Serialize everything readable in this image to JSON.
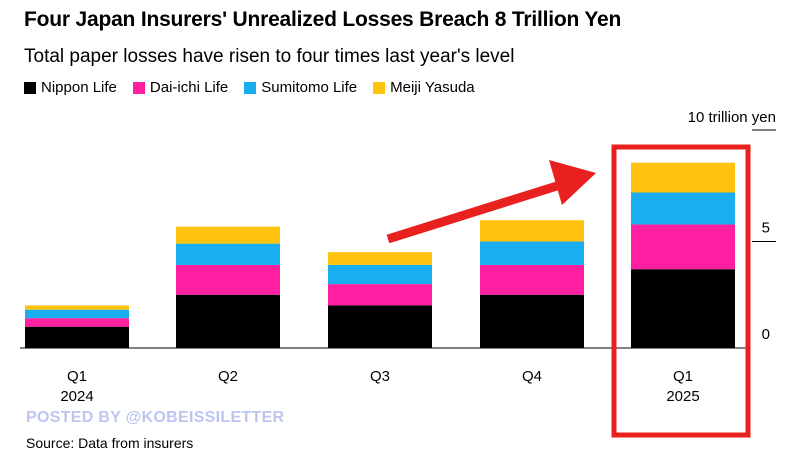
{
  "title": "Four Japan Insurers' Unrealized Losses Breach 8 Trillion Yen",
  "subtitle": "Total paper losses have risen to four times last year's level",
  "source": "Source: Data from insurers",
  "watermark": "POSTED BY @KOBEISSILETTER",
  "colors": {
    "nippon": "#000000",
    "daiichi": "#ff1fa0",
    "sumitomo": "#1aaef0",
    "meiji": "#ffc20e",
    "arrow": "#e8201e",
    "highlight_box": "#e8201e"
  },
  "chart_data": {
    "type": "bar",
    "stacked": true,
    "unit_label": "10 trillion yen",
    "categories": [
      [
        "Q1",
        "2024"
      ],
      [
        "Q2",
        ""
      ],
      [
        "Q3",
        ""
      ],
      [
        "Q4",
        ""
      ],
      [
        "Q1",
        "2025"
      ]
    ],
    "series": [
      {
        "name": "Nippon Life",
        "color_key": "nippon",
        "values": [
          1.0,
          2.5,
          2.0,
          2.5,
          3.7
        ]
      },
      {
        "name": "Dai-ichi Life",
        "color_key": "daiichi",
        "values": [
          0.4,
          1.4,
          1.0,
          1.4,
          2.1
        ]
      },
      {
        "name": "Sumitomo Life",
        "color_key": "sumitomo",
        "values": [
          0.4,
          1.0,
          0.9,
          1.1,
          1.5
        ]
      },
      {
        "name": "Meiji Yasuda",
        "color_key": "meiji",
        "values": [
          0.2,
          0.8,
          0.6,
          1.0,
          1.4
        ]
      }
    ],
    "yticks": [
      0,
      5
    ],
    "ylim": [
      0,
      10
    ],
    "grid": false,
    "legend_position": "top-left",
    "annotations": [
      "red arrow pointing up toward the last bar",
      "red box highlighting Q1 2025"
    ]
  }
}
